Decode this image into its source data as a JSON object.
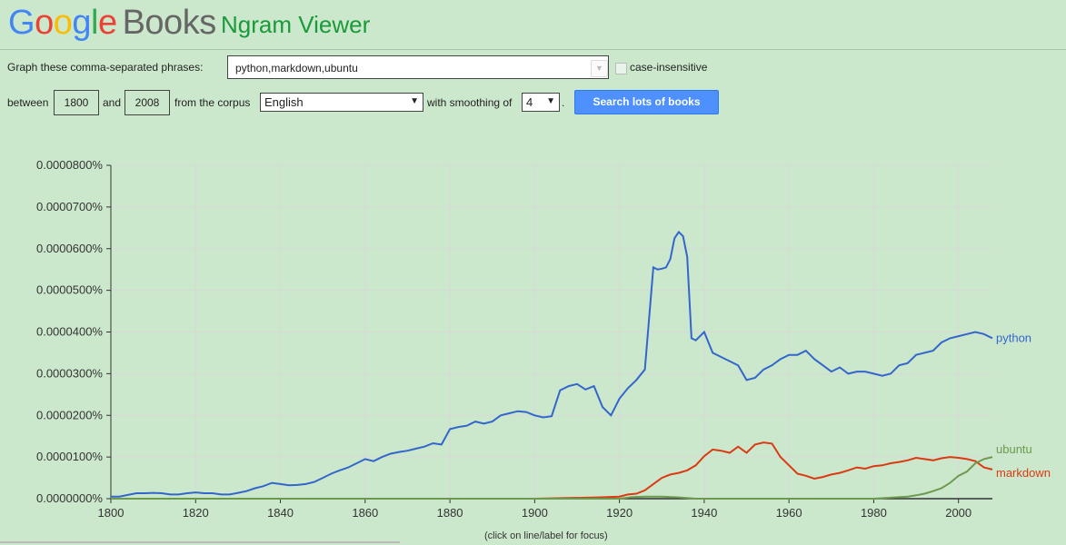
{
  "header": {
    "logo_google": [
      "G",
      "o",
      "o",
      "g",
      "l",
      "e"
    ],
    "logo_books": "Books",
    "title": "Ngram Viewer"
  },
  "form": {
    "phrases_label": "Graph these comma-separated phrases:",
    "phrases_value": "python,markdown,ubuntu",
    "case_insensitive_label": "case-insensitive",
    "between_label": "between",
    "start_year": "1800",
    "and_label": "and",
    "end_year": "2008",
    "corpus_label": "from the corpus",
    "corpus_value": "English",
    "smoothing_label": "with smoothing of",
    "smoothing_value": "4",
    "period": ".",
    "search_button": "Search lots of books"
  },
  "footnote": "(click on line/label for focus)",
  "chart_data": {
    "type": "line",
    "xlim": [
      1800,
      2008
    ],
    "ylim": [
      0,
      8e-05
    ],
    "y_unit": "%",
    "x_ticks": [
      "1800",
      "1820",
      "1840",
      "1860",
      "1880",
      "1900",
      "1920",
      "1940",
      "1960",
      "1980",
      "2000"
    ],
    "y_ticks": [
      "0.0000000%",
      "0.0000100%",
      "0.0000200%",
      "0.0000300%",
      "0.0000400%",
      "0.0000500%",
      "0.0000600%",
      "0.0000700%",
      "0.0000800%"
    ],
    "grid": true,
    "series": [
      {
        "name": "python",
        "color": "#3366cc",
        "x": [
          1800,
          1802,
          1804,
          1806,
          1808,
          1810,
          1812,
          1814,
          1816,
          1818,
          1820,
          1822,
          1824,
          1826,
          1828,
          1830,
          1832,
          1834,
          1836,
          1838,
          1840,
          1842,
          1844,
          1846,
          1848,
          1850,
          1852,
          1854,
          1856,
          1858,
          1860,
          1862,
          1864,
          1866,
          1868,
          1870,
          1872,
          1874,
          1876,
          1878,
          1880,
          1882,
          1884,
          1886,
          1888,
          1890,
          1892,
          1894,
          1896,
          1898,
          1900,
          1902,
          1904,
          1906,
          1908,
          1910,
          1912,
          1914,
          1916,
          1918,
          1920,
          1922,
          1924,
          1926,
          1928,
          1929,
          1930,
          1931,
          1932,
          1933,
          1934,
          1935,
          1936,
          1937,
          1938,
          1940,
          1942,
          1944,
          1946,
          1948,
          1950,
          1952,
          1954,
          1956,
          1958,
          1960,
          1962,
          1964,
          1966,
          1968,
          1970,
          1972,
          1974,
          1976,
          1978,
          1980,
          1982,
          1984,
          1986,
          1988,
          1990,
          1992,
          1994,
          1996,
          1998,
          2000,
          2002,
          2004,
          2006,
          2008
        ],
        "y": [
          5e-07,
          5e-07,
          9e-07,
          1.3e-06,
          1.3e-06,
          1.4e-06,
          1.3e-06,
          1e-06,
          1e-06,
          1.3e-06,
          1.5e-06,
          1.3e-06,
          1.3e-06,
          1e-06,
          1e-06,
          1.4e-06,
          1.8e-06,
          2.5e-06,
          3e-06,
          3.8e-06,
          3.5e-06,
          3.2e-06,
          3.3e-06,
          3.5e-06,
          4e-06,
          5e-06,
          6e-06,
          6.8e-06,
          7.5e-06,
          8.5e-06,
          9.5e-06,
          9e-06,
          1e-05,
          1.08e-05,
          1.12e-05,
          1.15e-05,
          1.2e-05,
          1.25e-05,
          1.33e-05,
          1.3e-05,
          1.67e-05,
          1.72e-05,
          1.75e-05,
          1.85e-05,
          1.8e-05,
          1.85e-05,
          2e-05,
          2.05e-05,
          2.1e-05,
          2.08e-05,
          2e-05,
          1.95e-05,
          1.98e-05,
          2.6e-05,
          2.7e-05,
          2.75e-05,
          2.62e-05,
          2.7e-05,
          2.2e-05,
          2e-05,
          2.4e-05,
          2.65e-05,
          2.85e-05,
          3.1e-05,
          5.55e-05,
          5.5e-05,
          5.52e-05,
          5.55e-05,
          5.75e-05,
          6.25e-05,
          6.4e-05,
          6.3e-05,
          5.8e-05,
          3.85e-05,
          3.8e-05,
          4e-05,
          3.5e-05,
          3.4e-05,
          3.3e-05,
          3.2e-05,
          2.85e-05,
          2.9e-05,
          3.1e-05,
          3.2e-05,
          3.35e-05,
          3.45e-05,
          3.45e-05,
          3.55e-05,
          3.35e-05,
          3.2e-05,
          3.05e-05,
          3.15e-05,
          3e-05,
          3.05e-05,
          3.05e-05,
          3e-05,
          2.95e-05,
          3e-05,
          3.2e-05,
          3.25e-05,
          3.45e-05,
          3.5e-05,
          3.55e-05,
          3.75e-05,
          3.85e-05,
          3.9e-05,
          3.95e-05,
          4e-05,
          3.95e-05,
          3.85e-05
        ]
      },
      {
        "name": "markdown",
        "color": "#dc3912",
        "x": [
          1800,
          1900,
          1915,
          1920,
          1922,
          1924,
          1926,
          1928,
          1930,
          1932,
          1934,
          1936,
          1938,
          1940,
          1942,
          1944,
          1946,
          1948,
          1950,
          1952,
          1954,
          1956,
          1958,
          1960,
          1962,
          1964,
          1966,
          1968,
          1970,
          1972,
          1974,
          1976,
          1978,
          1980,
          1982,
          1984,
          1986,
          1988,
          1990,
          1992,
          1994,
          1996,
          1998,
          2000,
          2002,
          2004,
          2006,
          2008
        ],
        "y": [
          0,
          0,
          3e-07,
          5e-07,
          1e-06,
          1.2e-06,
          2e-06,
          3.5e-06,
          5e-06,
          5.8e-06,
          6.2e-06,
          6.8e-06,
          8e-06,
          1.02e-05,
          1.18e-05,
          1.15e-05,
          1.1e-05,
          1.25e-05,
          1.1e-05,
          1.3e-05,
          1.35e-05,
          1.32e-05,
          1e-05,
          8e-06,
          6e-06,
          5.5e-06,
          4.8e-06,
          5.2e-06,
          5.8e-06,
          6.2e-06,
          6.8e-06,
          7.5e-06,
          7.2e-06,
          7.8e-06,
          8e-06,
          8.5e-06,
          8.8e-06,
          9.2e-06,
          9.8e-06,
          9.5e-06,
          9.2e-06,
          9.7e-06,
          1e-05,
          9.8e-06,
          9.5e-06,
          9e-06,
          7.5e-06,
          7e-06
        ]
      },
      {
        "name": "ubuntu",
        "color": "#6d9a4f",
        "x": [
          1800,
          1920,
          1923,
          1926,
          1930,
          1934,
          1938,
          1980,
          1985,
          1988,
          1990,
          1992,
          1994,
          1996,
          1998,
          2000,
          2002,
          2004,
          2006,
          2008
        ],
        "y": [
          0,
          0,
          4e-07,
          5e-07,
          5e-07,
          3e-07,
          0,
          0,
          3e-07,
          5e-07,
          8e-07,
          1.2e-06,
          1.8e-06,
          2.5e-06,
          3.8e-06,
          5.5e-06,
          6.5e-06,
          8.5e-06,
          9.5e-06,
          1e-05
        ]
      }
    ]
  }
}
